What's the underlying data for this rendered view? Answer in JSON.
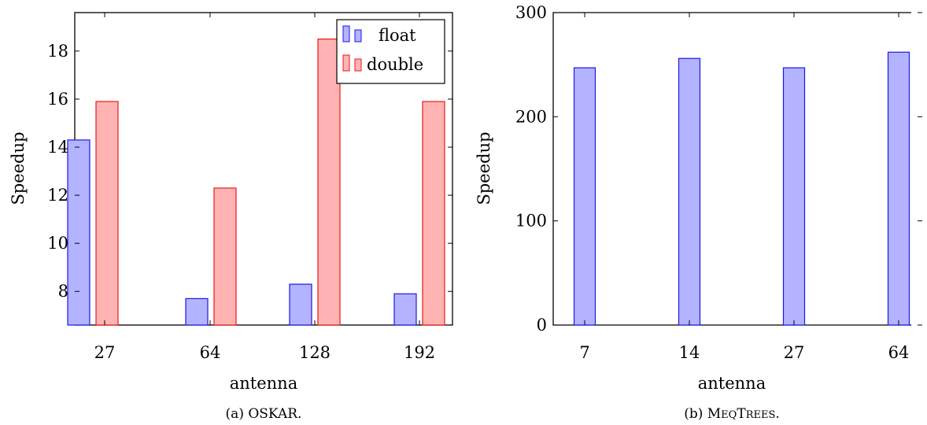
{
  "chart_data": [
    {
      "type": "bar",
      "title": "",
      "caption": "(a) OSKAR.",
      "xlabel": "antenna",
      "ylabel": "Speedup",
      "categories": [
        "27",
        "64",
        "128",
        "192"
      ],
      "ylim": [
        6.6,
        19.6
      ],
      "yticks": [
        "8",
        "10",
        "12",
        "14",
        "16",
        "18"
      ],
      "grid": false,
      "legend_position": "top-right",
      "series": [
        {
          "name": "float",
          "color": "#b3b3ff",
          "stroke": "#1a1ae6",
          "values": [
            14.3,
            7.7,
            8.3,
            7.9
          ]
        },
        {
          "name": "double",
          "color": "#ffb3b3",
          "stroke": "#e61a1a",
          "values": [
            15.9,
            12.3,
            18.5,
            15.9
          ]
        }
      ]
    },
    {
      "type": "bar",
      "title": "",
      "caption": "(b) MeqTrees.",
      "xlabel": "antenna",
      "ylabel": "Speedup",
      "categories": [
        "7",
        "14",
        "27",
        "64"
      ],
      "ylim": [
        0,
        300
      ],
      "yticks": [
        "0",
        "100",
        "200",
        "300"
      ],
      "grid": false,
      "series": [
        {
          "color": "#b3b3ff",
          "stroke": "#1a1ae6",
          "values": [
            247,
            256,
            247,
            262
          ]
        }
      ]
    }
  ]
}
